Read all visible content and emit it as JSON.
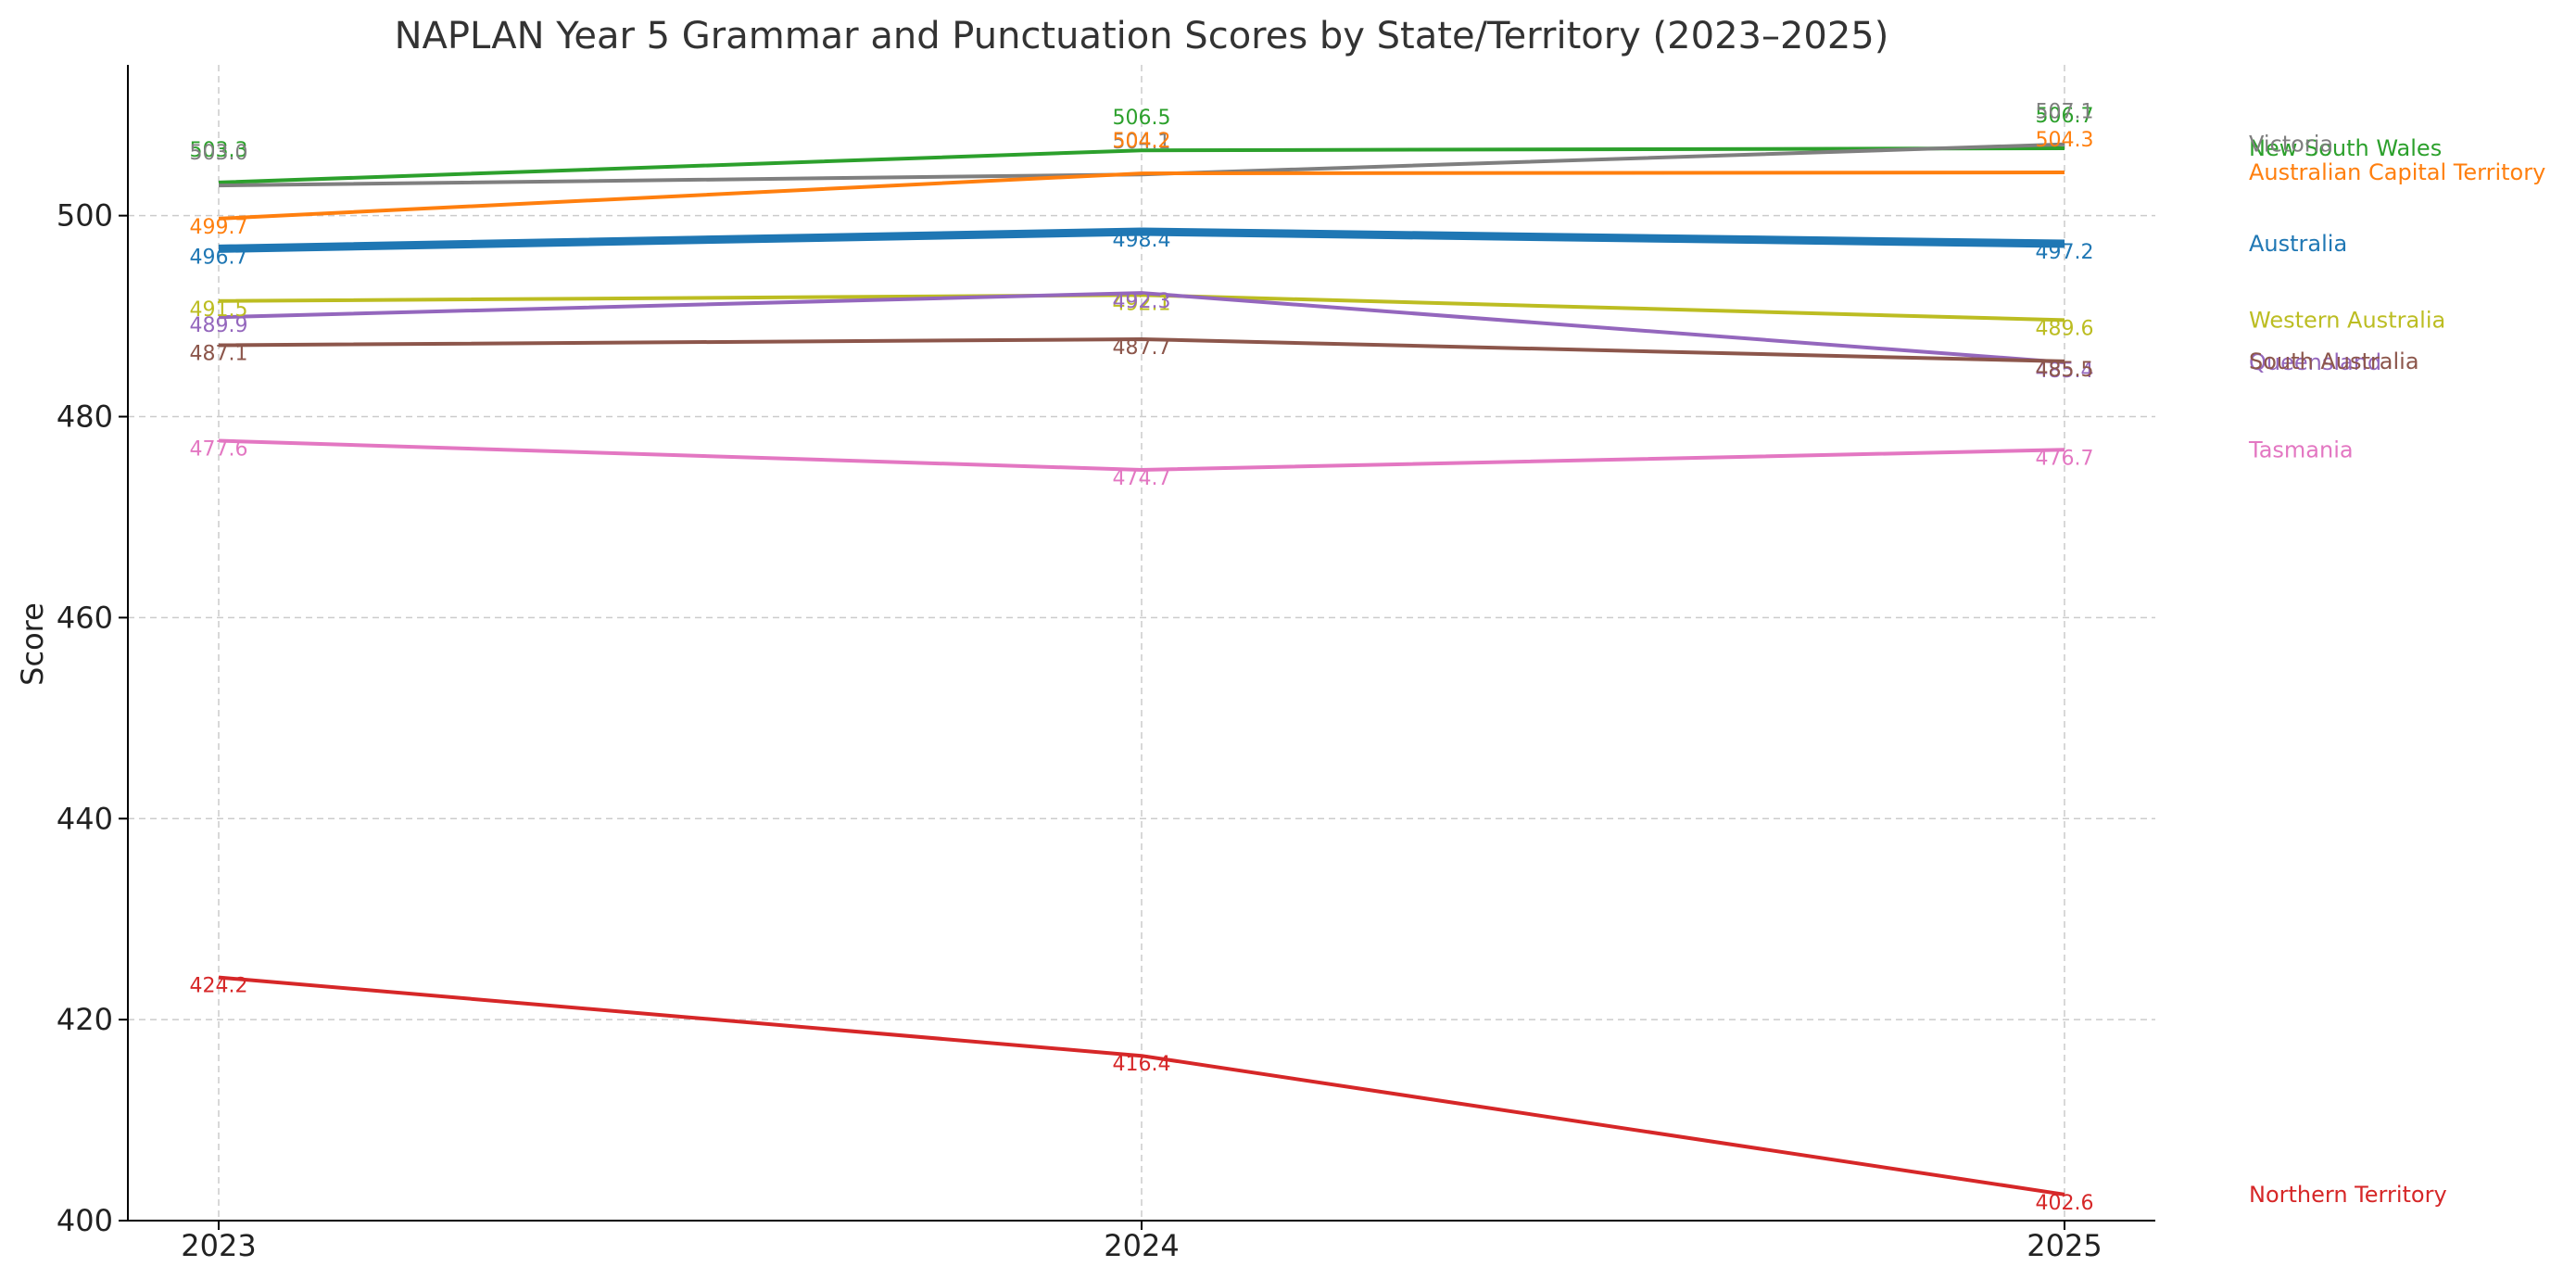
{
  "chart_data": {
    "type": "line",
    "title": "NAPLAN Year 5 Grammar and Punctuation Scores by State/Territory (2023–2025)",
    "xlabel": "",
    "ylabel": "Score",
    "x": [
      "2023",
      "2024",
      "2025"
    ],
    "ylim": [
      400,
      515
    ],
    "yticks": [
      400,
      420,
      440,
      460,
      480,
      500
    ],
    "grid": true,
    "legend": "labels at right end of each line",
    "series": [
      {
        "name": "New South Wales",
        "values": [
          503.3,
          506.5,
          506.7
        ],
        "color": "#2ca02c",
        "width": 4
      },
      {
        "name": "Victoria",
        "values": [
          503.0,
          504.1,
          507.1
        ],
        "color": "#7f7f7f",
        "width": 4
      },
      {
        "name": "Australian Capital Territory",
        "values": [
          499.7,
          504.2,
          504.3
        ],
        "color": "#ff7f0e",
        "width": 4
      },
      {
        "name": "Australia",
        "values": [
          496.7,
          498.4,
          497.2
        ],
        "color": "#1f77b4",
        "width": 9
      },
      {
        "name": "Western Australia",
        "values": [
          491.5,
          492.1,
          489.6
        ],
        "color": "#bcbd22",
        "width": 4
      },
      {
        "name": "Queensland",
        "values": [
          489.9,
          492.3,
          485.4
        ],
        "color": "#9467bd",
        "width": 4
      },
      {
        "name": "South Australia",
        "values": [
          487.1,
          487.7,
          485.5
        ],
        "color": "#8c564b",
        "width": 4
      },
      {
        "name": "Tasmania",
        "values": [
          477.6,
          474.7,
          476.7
        ],
        "color": "#e377c2",
        "width": 4
      },
      {
        "name": "Northern Territory",
        "values": [
          424.2,
          416.4,
          402.6
        ],
        "color": "#d62728",
        "width": 4
      }
    ]
  }
}
